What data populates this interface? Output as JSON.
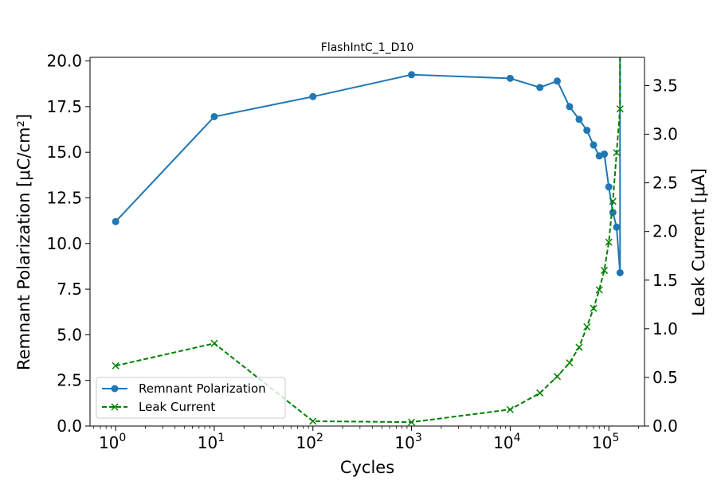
{
  "chart_data": {
    "type": "line",
    "title": "FlashIntC_1_D10",
    "xlabel": "Cycles",
    "ylabel_left": "Remnant Polarization [μC/cm²]",
    "ylabel_right": "Leak Current [μA]",
    "x_scale": "log",
    "xlim": [
      0.55,
      230000
    ],
    "ylim_left": [
      0,
      20.2
    ],
    "ylim_right": [
      0,
      3.79
    ],
    "x_ticks": [
      {
        "value": 1,
        "base": "10",
        "exp": "0"
      },
      {
        "value": 10,
        "base": "10",
        "exp": "1"
      },
      {
        "value": 100,
        "base": "10",
        "exp": "2"
      },
      {
        "value": 1000,
        "base": "10",
        "exp": "3"
      },
      {
        "value": 10000,
        "base": "10",
        "exp": "4"
      },
      {
        "value": 100000,
        "base": "10",
        "exp": "5"
      }
    ],
    "y_left_ticks": [
      "0.0",
      "2.5",
      "5.0",
      "7.5",
      "10.0",
      "12.5",
      "15.0",
      "17.5",
      "20.0"
    ],
    "y_right_ticks": [
      "0.0",
      "0.5",
      "1.0",
      "1.5",
      "2.0",
      "2.5",
      "3.0",
      "3.5"
    ],
    "series": [
      {
        "name": "Remnant Polarization",
        "axis": "left",
        "color": "#1f77b4",
        "marker": "circle",
        "linestyle": "solid",
        "x": [
          1,
          10,
          100,
          1000,
          10000,
          20000,
          30000,
          40000,
          50000,
          60000,
          70000,
          80000,
          90000,
          100000,
          110000,
          120000,
          130000,
          130000
        ],
        "y": [
          11.2,
          16.95,
          18.05,
          19.25,
          19.05,
          18.55,
          18.9,
          17.5,
          16.8,
          16.2,
          15.4,
          14.8,
          14.9,
          13.1,
          11.7,
          10.9,
          8.4,
          20.2
        ]
      },
      {
        "name": "Leak Current",
        "axis": "right",
        "color": "#008000",
        "marker": "x",
        "linestyle": "dashed",
        "x": [
          1,
          10,
          100,
          1000,
          10000,
          20000,
          30000,
          40000,
          50000,
          60000,
          70000,
          80000,
          90000,
          100000,
          110000,
          120000,
          130000,
          130000
        ],
        "y": [
          0.62,
          0.85,
          0.05,
          0.04,
          0.17,
          0.34,
          0.51,
          0.65,
          0.81,
          1.02,
          1.21,
          1.4,
          1.6,
          1.89,
          2.31,
          2.81,
          3.26,
          3.79
        ]
      }
    ],
    "grid": false,
    "legend": "lower-left"
  }
}
